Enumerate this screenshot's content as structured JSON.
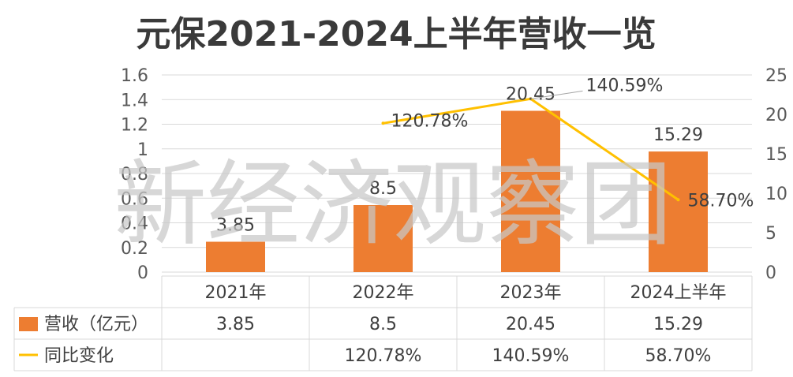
{
  "chart_data": {
    "type": "bar",
    "title": "元保2021-2024上半年营收一览",
    "categories": [
      "2021年",
      "2022年",
      "2023年",
      "2024上半年"
    ],
    "series": [
      {
        "name": "营收（亿元）",
        "type": "bar",
        "axis": "left",
        "values": [
          3.85,
          8.5,
          20.45,
          15.29
        ],
        "data_labels": [
          "3.85",
          "8.5",
          "20.45",
          "15.29"
        ],
        "table_labels": [
          "3.85",
          "8.5",
          "20.45",
          "15.29"
        ],
        "color": "#ED7D31"
      },
      {
        "name": "同比变化",
        "type": "line",
        "axis": "right",
        "values": [
          null,
          120.78,
          140.59,
          58.7
        ],
        "data_labels": [
          "",
          "120.78%",
          "140.59%",
          "58.70%"
        ],
        "table_labels": [
          "",
          "120.78%",
          "140.59%",
          "58.70%"
        ],
        "color": "#FFC000"
      }
    ],
    "y_left": {
      "ylim": [
        0,
        1.6
      ],
      "ticks": [
        "0",
        "0.2",
        "0.4",
        "0.6",
        "0.8",
        "1",
        "1.2",
        "1.4",
        "1.6"
      ]
    },
    "y_right": {
      "ylim": [
        0,
        25
      ],
      "ticks": [
        "0",
        "5",
        "10",
        "15",
        "20",
        "25"
      ]
    },
    "grid": true,
    "legend": "data-table"
  },
  "watermark": "新经济观察团"
}
